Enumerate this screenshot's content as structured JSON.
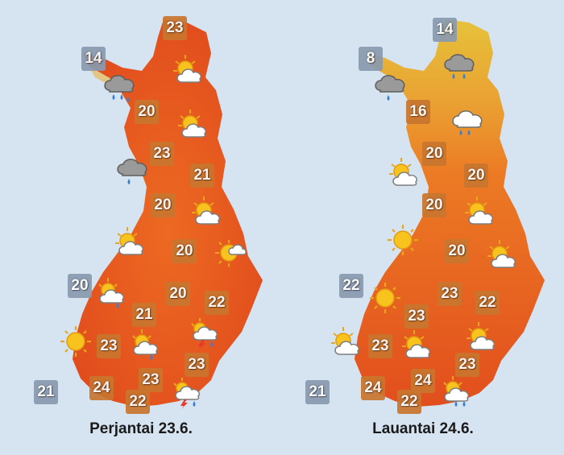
{
  "colors": {
    "background": "#d6e3f1",
    "land_warm": "#e5531e",
    "land_hot": "#f07a22",
    "land_cool": "#e8b43a",
    "label_bg_warm": "#c9762f",
    "label_bg_cool": "#8a9aaf",
    "caption": "#1a1a1a"
  },
  "maps": [
    {
      "day_label": "Perjantai 23.6.",
      "temperatures": [
        {
          "id": "utsjoki",
          "value": "23",
          "tone": "warm"
        },
        {
          "id": "enontekio",
          "value": "14",
          "tone": "cool"
        },
        {
          "id": "sodankyla",
          "value": "20",
          "tone": "warm"
        },
        {
          "id": "rovaniemi",
          "value": "23",
          "tone": "warm"
        },
        {
          "id": "kuusamo",
          "value": "21",
          "tone": "warm"
        },
        {
          "id": "oulu",
          "value": "20",
          "tone": "warm"
        },
        {
          "id": "kajaani",
          "value": "20",
          "tone": "warm"
        },
        {
          "id": "vaasa",
          "value": "20",
          "tone": "cool"
        },
        {
          "id": "jyvaskyla",
          "value": "20",
          "tone": "warm"
        },
        {
          "id": "seinajoki",
          "value": "21",
          "tone": "warm"
        },
        {
          "id": "joensuu",
          "value": "22",
          "tone": "warm"
        },
        {
          "id": "tampere",
          "value": "23",
          "tone": "warm"
        },
        {
          "id": "mikkeli",
          "value": "23",
          "tone": "warm"
        },
        {
          "id": "lahti",
          "value": "23",
          "tone": "warm"
        },
        {
          "id": "maarianhamina",
          "value": "21",
          "tone": "cool"
        },
        {
          "id": "turku",
          "value": "24",
          "tone": "warm"
        },
        {
          "id": "helsinki",
          "value": "22",
          "tone": "warm"
        }
      ],
      "weather_icons": [
        {
          "id": "utsjoki",
          "icon": "sun-cloud-icon"
        },
        {
          "id": "enontekio",
          "icon": "rain-cloud-icon"
        },
        {
          "id": "sodankyla",
          "icon": "sun-cloud-icon"
        },
        {
          "id": "oulu-coast",
          "icon": "rain-cloud-icon"
        },
        {
          "id": "kuusamo",
          "icon": "sun-cloud-icon"
        },
        {
          "id": "oulu",
          "icon": "sun-cloud-icon"
        },
        {
          "id": "kainuu",
          "icon": "cloud-sun-icon"
        },
        {
          "id": "vaasa",
          "icon": "sun-rain-icon"
        },
        {
          "id": "seinajoki",
          "icon": "sun-icon"
        },
        {
          "id": "tampere",
          "icon": "sun-rain-icon"
        },
        {
          "id": "savo",
          "icon": "thunder-icon"
        },
        {
          "id": "kymi",
          "icon": "thunder-icon"
        }
      ]
    },
    {
      "day_label": "Lauantai 24.6.",
      "temperatures": [
        {
          "id": "utsjoki",
          "value": "14",
          "tone": "cool"
        },
        {
          "id": "enontekio",
          "value": "8",
          "tone": "cool"
        },
        {
          "id": "sodankyla",
          "value": "16",
          "tone": "warm"
        },
        {
          "id": "rovaniemi",
          "value": "20",
          "tone": "warm"
        },
        {
          "id": "kuusamo",
          "value": "20",
          "tone": "warm"
        },
        {
          "id": "oulu",
          "value": "20",
          "tone": "warm"
        },
        {
          "id": "kajaani",
          "value": "20",
          "tone": "warm"
        },
        {
          "id": "vaasa",
          "value": "22",
          "tone": "cool"
        },
        {
          "id": "jyvaskyla",
          "value": "23",
          "tone": "warm"
        },
        {
          "id": "seinajoki",
          "value": "23",
          "tone": "warm"
        },
        {
          "id": "joensuu",
          "value": "22",
          "tone": "warm"
        },
        {
          "id": "tampere",
          "value": "23",
          "tone": "warm"
        },
        {
          "id": "mikkeli",
          "value": "23",
          "tone": "warm"
        },
        {
          "id": "lahti",
          "value": "24",
          "tone": "warm"
        },
        {
          "id": "maarianhamina",
          "value": "21",
          "tone": "cool"
        },
        {
          "id": "turku",
          "value": "24",
          "tone": "warm"
        },
        {
          "id": "helsinki",
          "value": "22",
          "tone": "warm"
        }
      ],
      "weather_icons": [
        {
          "id": "utsjoki",
          "icon": "rain-cloud-icon"
        },
        {
          "id": "enontekio",
          "icon": "rain-cloud-icon"
        },
        {
          "id": "sodankyla",
          "icon": "rain-cloud-icon"
        },
        {
          "id": "rovaniemi",
          "icon": "sun-cloud-icon"
        },
        {
          "id": "kuusamo",
          "icon": "sun-cloud-icon"
        },
        {
          "id": "oulu",
          "icon": "sun-icon"
        },
        {
          "id": "kainuu",
          "icon": "sun-cloud-icon"
        },
        {
          "id": "vaasa",
          "icon": "sun-icon"
        },
        {
          "id": "maarianhamina-west",
          "icon": "sun-cloud-icon"
        },
        {
          "id": "tampere",
          "icon": "sun-cloud-icon"
        },
        {
          "id": "savo",
          "icon": "sun-cloud-icon"
        },
        {
          "id": "kymi",
          "icon": "sun-rain-icon"
        }
      ]
    }
  ]
}
